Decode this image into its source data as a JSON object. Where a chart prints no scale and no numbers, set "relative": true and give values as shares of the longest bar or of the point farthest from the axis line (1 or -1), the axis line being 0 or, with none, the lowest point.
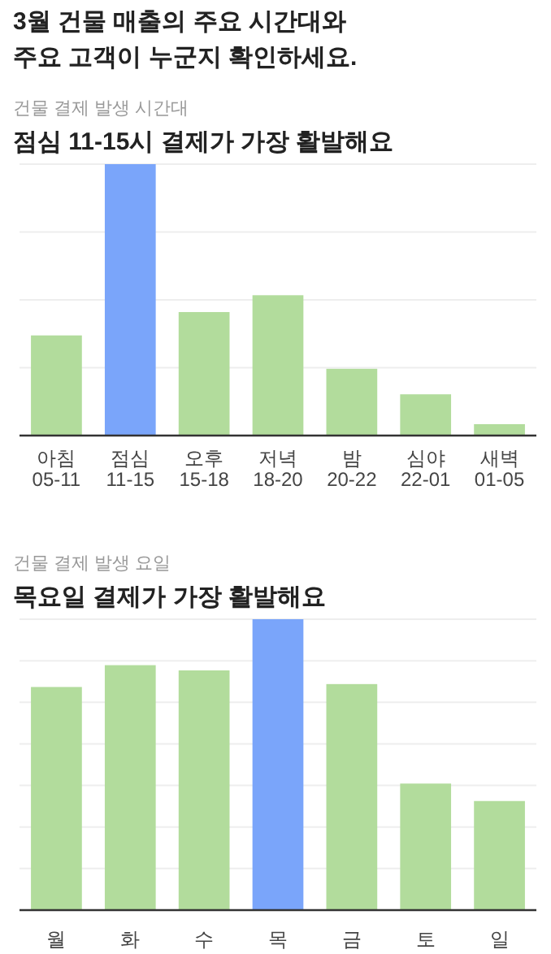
{
  "chart_data": [
    {
      "type": "bar",
      "title": "점심 11-15시 결제가 가장 활발해요",
      "subtitle": "건물 결제 발생 시간대",
      "annotations": [
        "3월 건물 매출의 주요 시간대와\n주요 고객이 누군지 확인하세요."
      ],
      "categories": [
        "아침\n05-11",
        "점심\n11-15",
        "오후\n15-18",
        "저녁\n18-20",
        "밤\n20-22",
        "심야\n22-01",
        "새벽\n01-05"
      ],
      "relative": true,
      "grid": "y",
      "values": [
        0.369,
        1,
        0.455,
        0.517,
        0.246,
        0.152,
        0.042
      ],
      "colors": [
        "#b2dc9c",
        "#7aa5fa",
        "#b2dc9c",
        "#b2dc9c",
        "#b2dc9c",
        "#b2dc9c",
        "#b2dc9c"
      ]
    },
    {
      "type": "bar",
      "title": "목요일 결제가 가장 활발해요",
      "subtitle": "건물 결제 발생 요일",
      "categories": [
        "월",
        "화",
        "수",
        "목",
        "금",
        "토",
        "일"
      ],
      "relative": true,
      "grid": "y",
      "values": [
        0.767,
        0.842,
        0.824,
        1,
        0.777,
        0.435,
        0.375
      ],
      "colors": [
        "#b2dc9c",
        "#b2dc9c",
        "#b2dc9c",
        "#7aa5fa",
        "#b2dc9c",
        "#b2dc9c",
        "#b2dc9c"
      ]
    }
  ]
}
